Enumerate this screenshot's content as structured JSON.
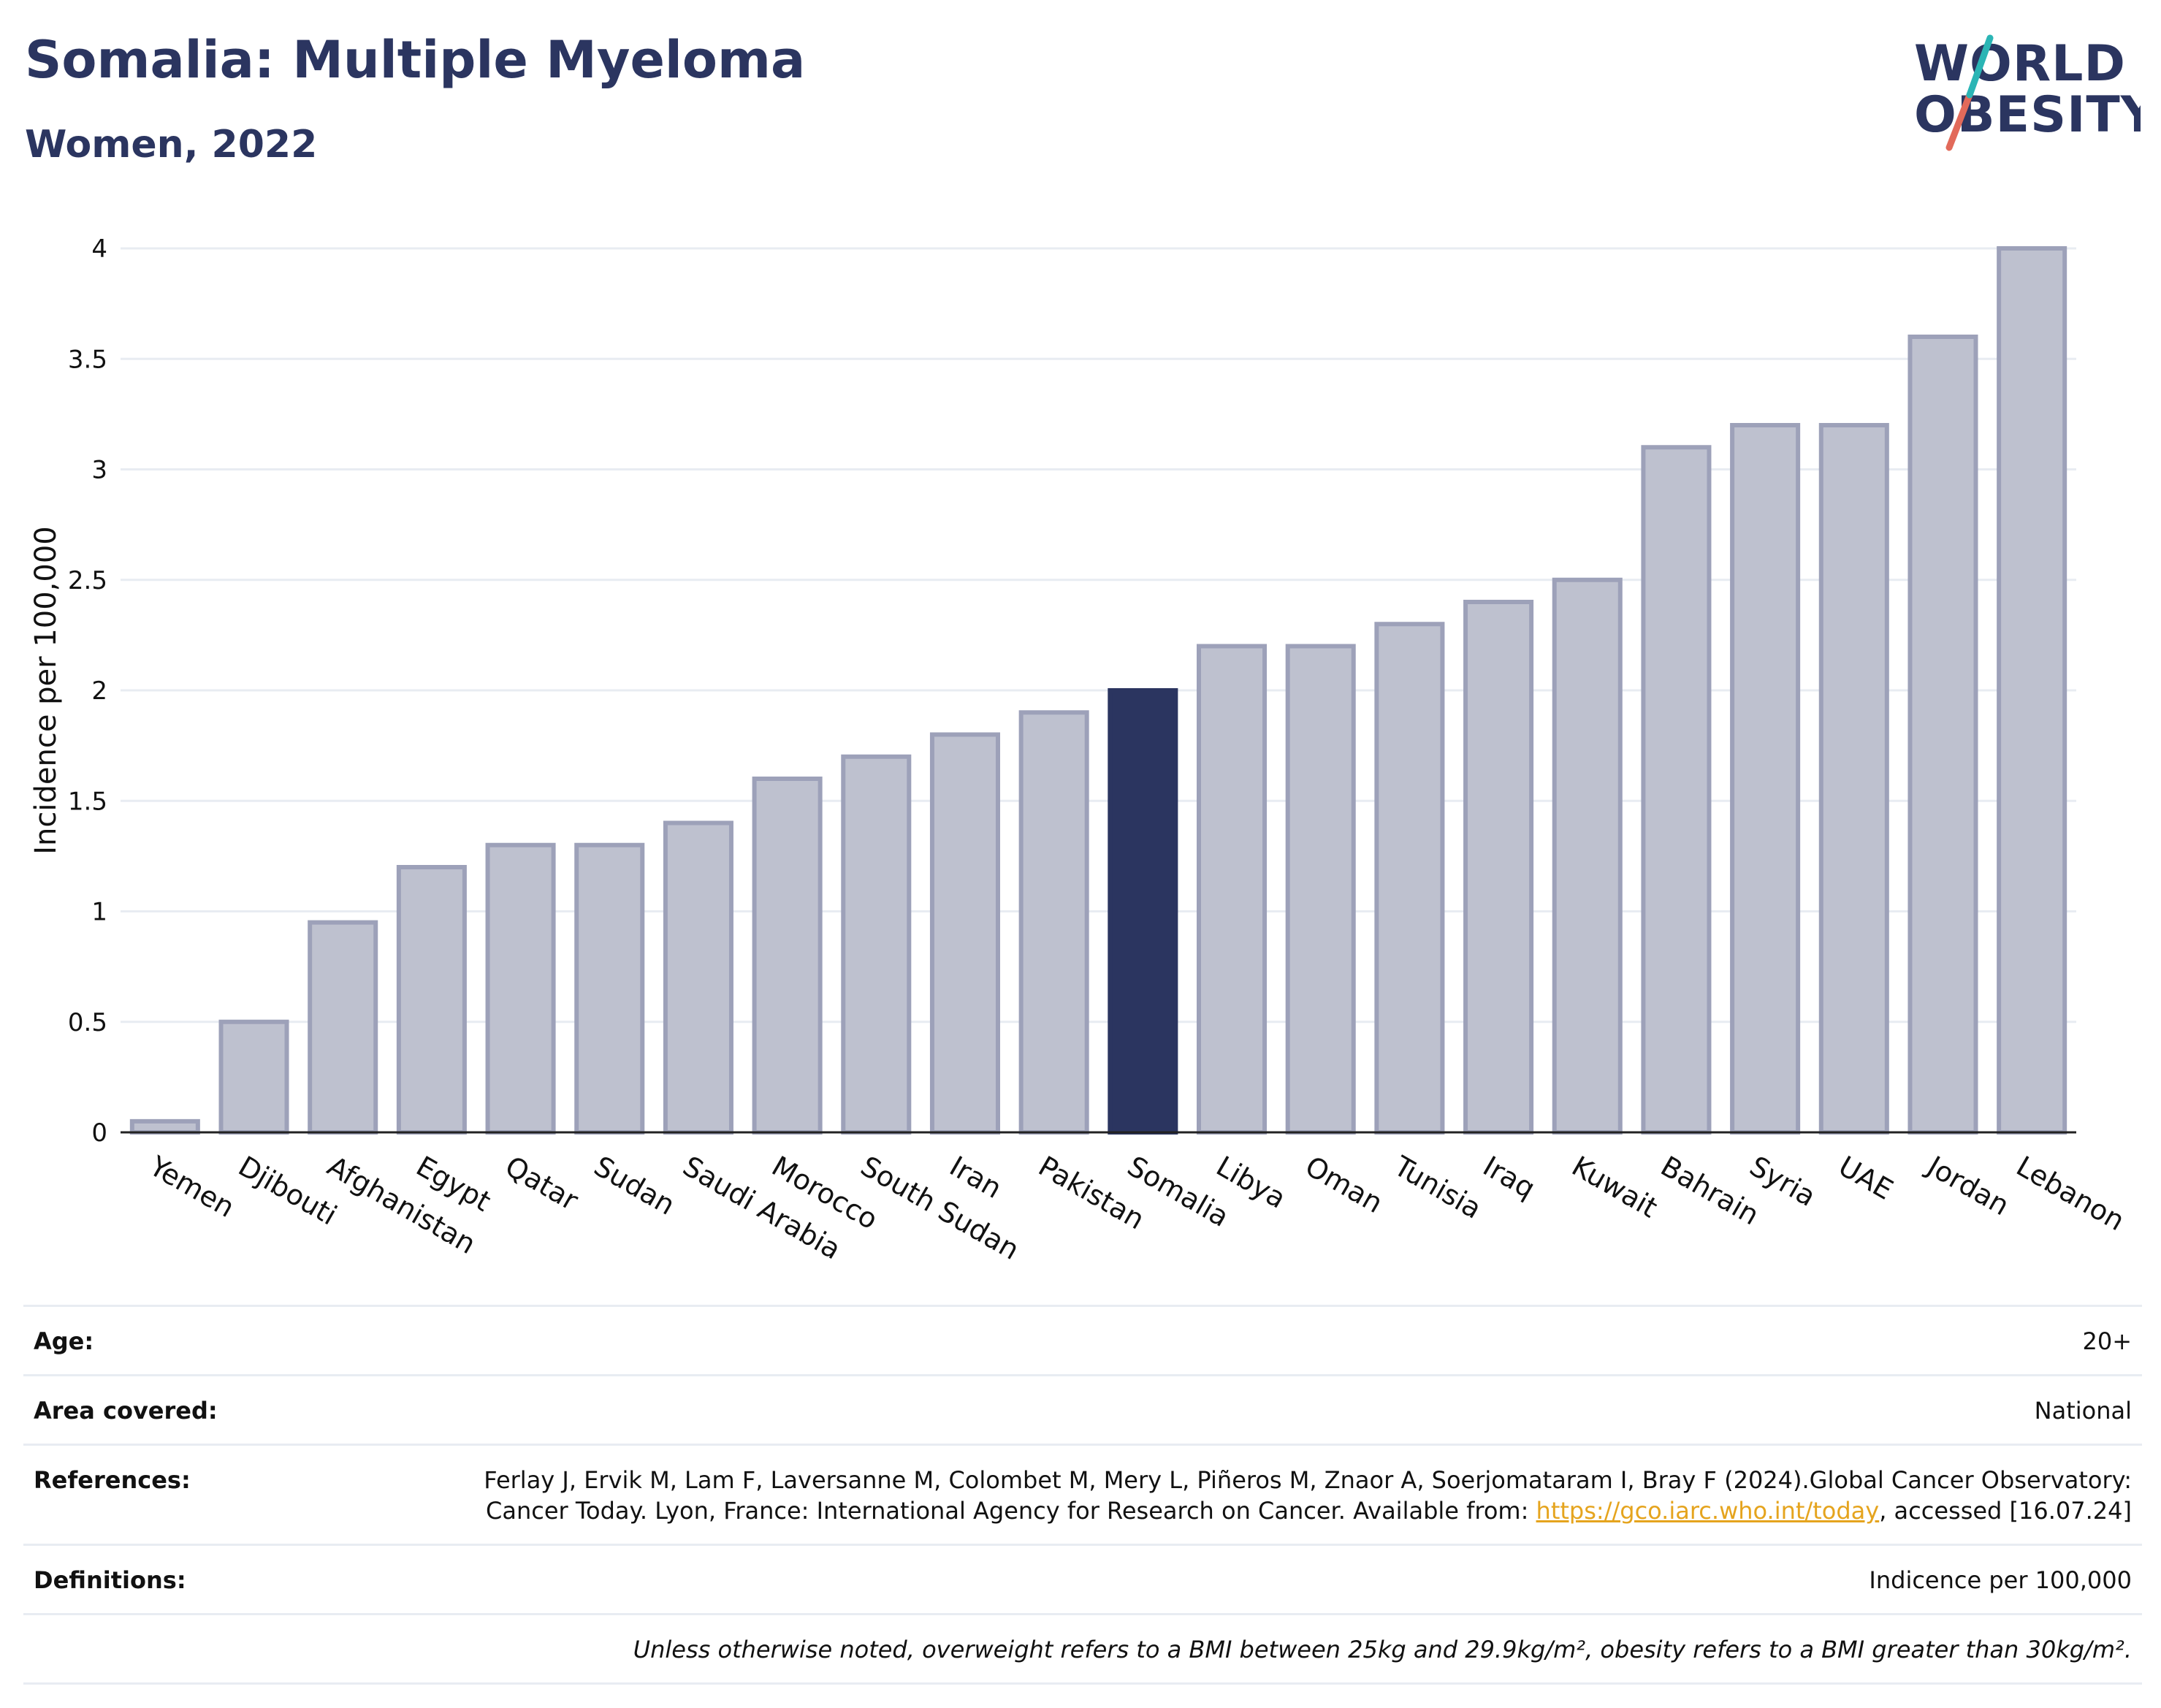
{
  "title": "Somalia: Multiple Myeloma",
  "subtitle": "Women, 2022",
  "logo": {
    "line1": "WORLD",
    "line2": "OBESITY"
  },
  "chart_data": {
    "type": "bar",
    "ylabel": "Incidence per 100,000",
    "xlabel": "",
    "ylim": [
      0,
      4
    ],
    "yticks": [
      "0",
      "0.5",
      "1",
      "1.5",
      "2",
      "2.5",
      "3",
      "3.5",
      "4"
    ],
    "grid": true,
    "highlight": "Somalia",
    "categories": [
      "Yemen",
      "Djibouti",
      "Afghanistan",
      "Egypt",
      "Qatar",
      "Sudan",
      "Saudi Arabia",
      "Morocco",
      "South Sudan",
      "Iran",
      "Pakistan",
      "Somalia",
      "Libya",
      "Oman",
      "Tunisia",
      "Iraq",
      "Kuwait",
      "Bahrain",
      "Syria",
      "UAE",
      "Jordan",
      "Lebanon"
    ],
    "values": [
      0.05,
      0.5,
      0.95,
      1.2,
      1.3,
      1.3,
      1.4,
      1.6,
      1.7,
      1.8,
      1.9,
      2.0,
      2.2,
      2.2,
      2.3,
      2.4,
      2.5,
      3.1,
      3.2,
      3.2,
      3.6,
      4.0
    ],
    "colors": {
      "bar": "#bec1cf",
      "bar_edge": "#9da1b9",
      "highlight": "#2b3560",
      "grid": "#e8ecf2",
      "axis": "#222222"
    }
  },
  "info": {
    "age_label": "Age:",
    "age_value": "20+",
    "area_label": "Area covered:",
    "area_value": "National",
    "references_label": "References:",
    "references_text_1": "Ferlay J, Ervik M, Lam F, Laversanne M, Colombet M, Mery L, Piñeros M, Znaor A, Soerjomataram I, Bray F (2024).Global Cancer Observatory: Cancer Today. Lyon, France: International Agency for Research on Cancer. Available from: ",
    "references_link": "https://gco.iarc.who.int/today",
    "references_text_2": ", accessed [16.07.24]",
    "definitions_label": "Definitions:",
    "definitions_value": "Indicence per 100,000",
    "note": "Unless otherwise noted, overweight refers to a BMI between 25kg and 29.9kg/m², obesity refers to a BMI greater than 30kg/m²."
  }
}
